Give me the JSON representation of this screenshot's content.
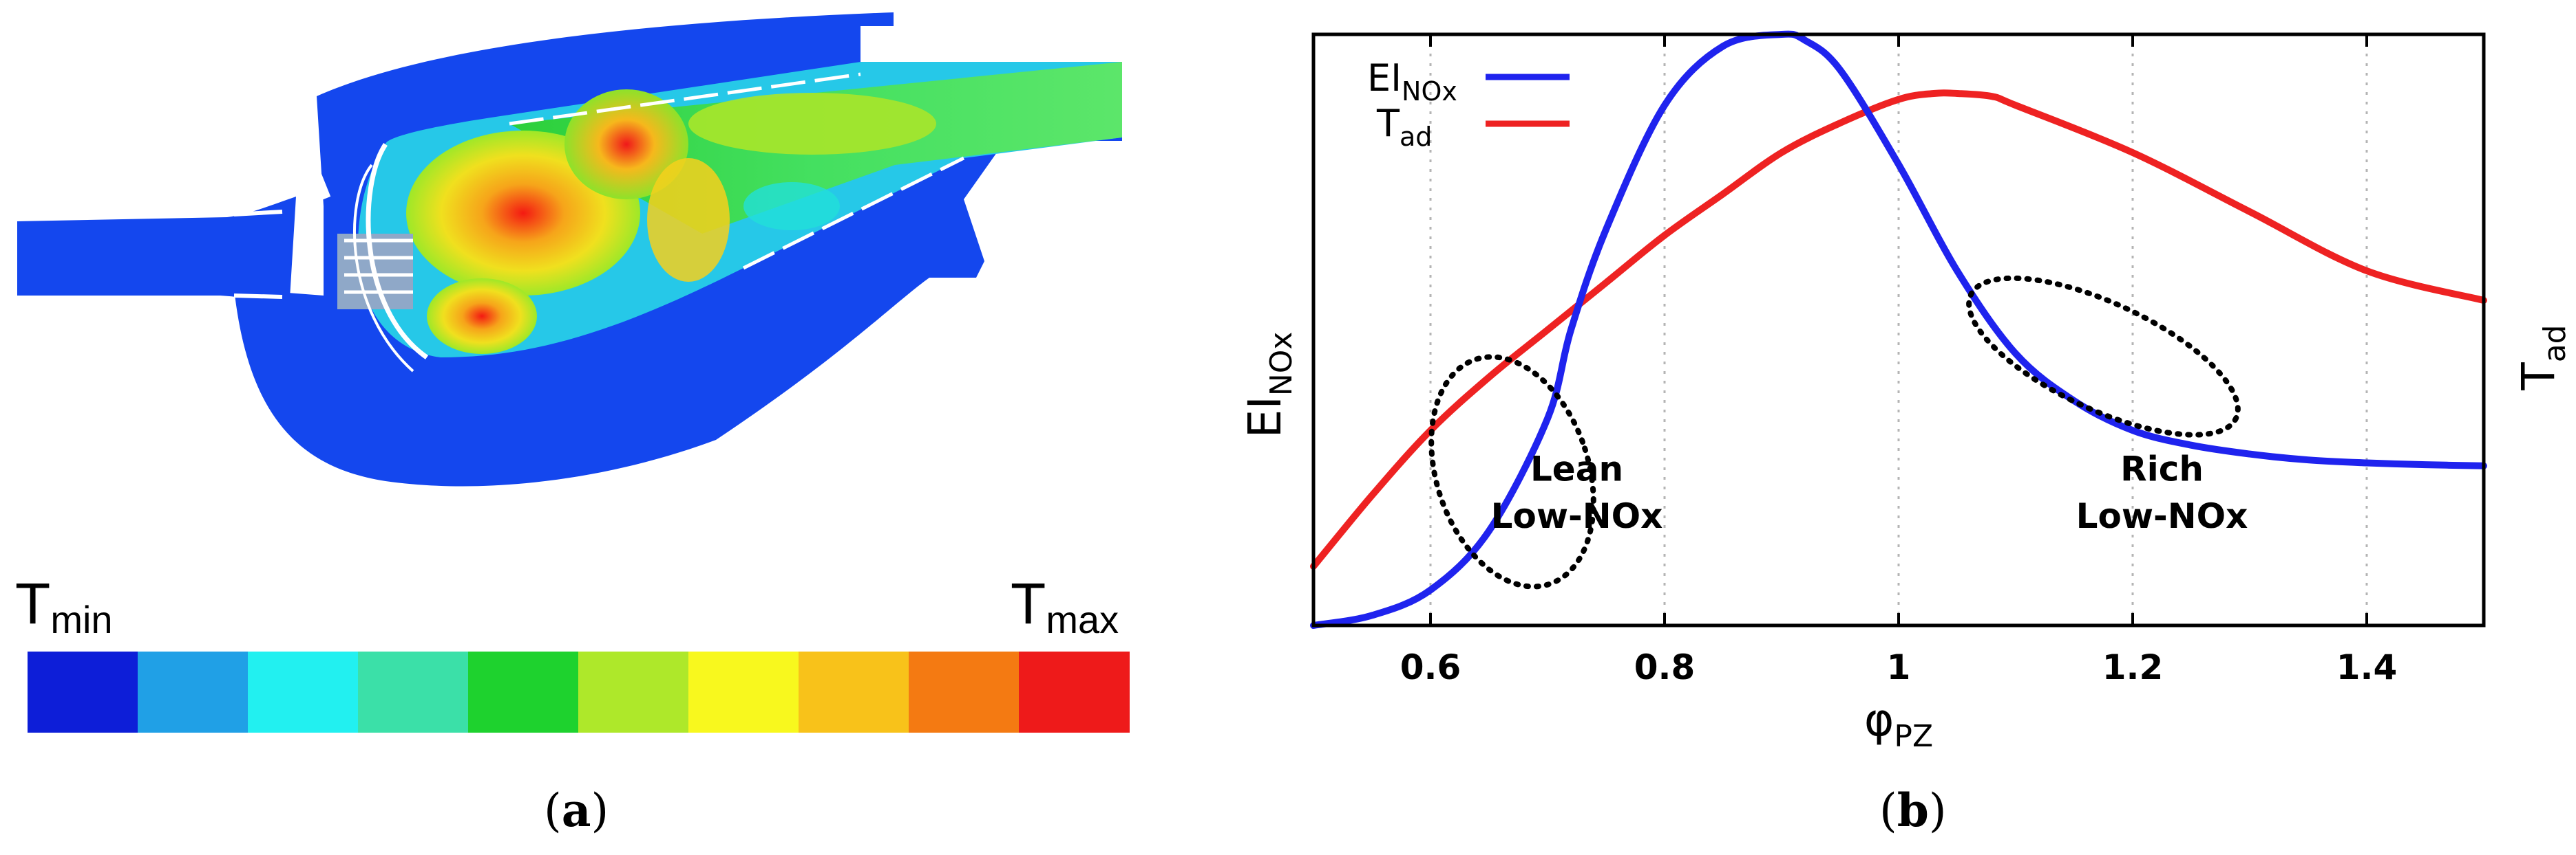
{
  "panel_a": {
    "caption": {
      "open": "(",
      "letter": "a",
      "close": ")"
    },
    "t_min": {
      "base": "T",
      "sub": "min"
    },
    "t_max": {
      "base": "T",
      "sub": "max"
    },
    "colorbar_colors": [
      "#0d1ed8",
      "#20a0e6",
      "#22f0f0",
      "#3be0a8",
      "#1ed22e",
      "#aee82a",
      "#f8f81e",
      "#f8c21a",
      "#f47a12",
      "#ee1a1a"
    ],
    "image_name": "combustor-temperature-contour"
  },
  "panel_b": {
    "caption": {
      "open": "(",
      "letter": "b",
      "close": ")"
    }
  },
  "chart_data": {
    "type": "line",
    "title": "",
    "xlabel": {
      "base": "φ",
      "sub": "PZ"
    },
    "ylabel_left": {
      "base": "EI",
      "sub": "NOx"
    },
    "ylabel_right": {
      "base": "T",
      "sub": "ad"
    },
    "xlim": [
      0.5,
      1.5
    ],
    "ylim": [
      0,
      1
    ],
    "x_ticks": [
      0.6,
      0.8,
      1.0,
      1.2,
      1.4
    ],
    "x_tick_labels": [
      "0.6",
      "0.8",
      "1",
      "1.2",
      "1.4"
    ],
    "grid": "vertical-dotted",
    "y_tick_labels": "none",
    "legend": {
      "placement": "top-left",
      "entries": [
        {
          "base": "EI",
          "sub": "NOx",
          "color": "#1f23ee"
        },
        {
          "base": "T",
          "sub": "ad",
          "color": "#ee2222"
        }
      ]
    },
    "series": [
      {
        "name": "EINOx",
        "color": "#1f23ee",
        "x": [
          0.5,
          0.55,
          0.6,
          0.65,
          0.7,
          0.72,
          0.75,
          0.8,
          0.85,
          0.9,
          0.92,
          0.95,
          1.0,
          1.05,
          1.1,
          1.15,
          1.2,
          1.25,
          1.3,
          1.35,
          1.4,
          1.45,
          1.5
        ],
        "y": [
          0.0,
          0.017,
          0.06,
          0.16,
          0.35,
          0.5,
          0.67,
          0.88,
          0.98,
          1.0,
          0.99,
          0.94,
          0.78,
          0.6,
          0.46,
          0.38,
          0.33,
          0.305,
          0.29,
          0.28,
          0.275,
          0.272,
          0.27
        ]
      },
      {
        "name": "Tad",
        "color": "#ee2222",
        "x": [
          0.5,
          0.55,
          0.6,
          0.65,
          0.7,
          0.75,
          0.8,
          0.85,
          0.9,
          0.95,
          1.0,
          1.03,
          1.05,
          1.08,
          1.1,
          1.2,
          1.3,
          1.4,
          1.5
        ],
        "y": [
          0.1,
          0.22,
          0.33,
          0.42,
          0.5,
          0.58,
          0.66,
          0.73,
          0.8,
          0.85,
          0.89,
          0.9,
          0.9,
          0.895,
          0.88,
          0.8,
          0.7,
          0.6,
          0.55
        ]
      }
    ],
    "regions": [
      {
        "label_line1": "Lean",
        "label_line2": "Low-NOx",
        "center_x": 0.67,
        "center_y": 0.26,
        "rx": 0.065,
        "ry": 0.2,
        "tilt": -18
      },
      {
        "label_line1": "Rich",
        "label_line2": "Low-NOx",
        "center_x": 1.175,
        "center_y": 0.455,
        "rx": 0.125,
        "ry": 0.09,
        "tilt": 25
      }
    ]
  }
}
